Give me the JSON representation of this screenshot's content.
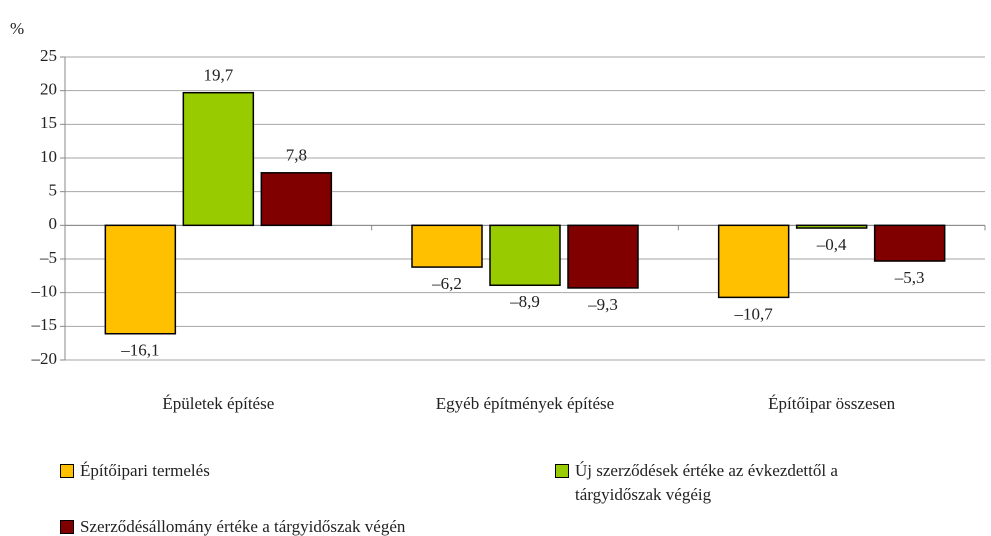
{
  "chart_data": {
    "type": "bar",
    "y_label": "%",
    "categories": [
      "Épületek építése",
      "Egyéb építmények építése",
      "Építőipar összesen"
    ],
    "series": [
      {
        "name": "Építőipari termelés",
        "color": "#ffc000",
        "values": [
          -16.1,
          -6.2,
          -10.7
        ],
        "value_labels": [
          "–16,1",
          "–6,2",
          "–10,7"
        ]
      },
      {
        "name": "Új szerződések értéke az évkezdettől a tárgyidőszak végéig",
        "color": "#99cc00",
        "values": [
          19.7,
          -8.9,
          -0.4
        ],
        "value_labels": [
          "19,7",
          "–8,9",
          "–0,4"
        ]
      },
      {
        "name": "Szerződésállomány értéke a tárgyidőszak végén",
        "color": "#800000",
        "values": [
          7.8,
          -9.3,
          -5.3
        ],
        "value_labels": [
          "7,8",
          "–9,3",
          "–5,3"
        ]
      }
    ],
    "ylim": [
      -20,
      25
    ],
    "yticks": [
      {
        "value": -20,
        "label": "–20"
      },
      {
        "value": -15,
        "label": "–15"
      },
      {
        "value": -10,
        "label": "–10"
      },
      {
        "value": -5,
        "label": "–5"
      },
      0,
      5,
      10,
      15,
      20,
      25
    ],
    "grid": true
  }
}
